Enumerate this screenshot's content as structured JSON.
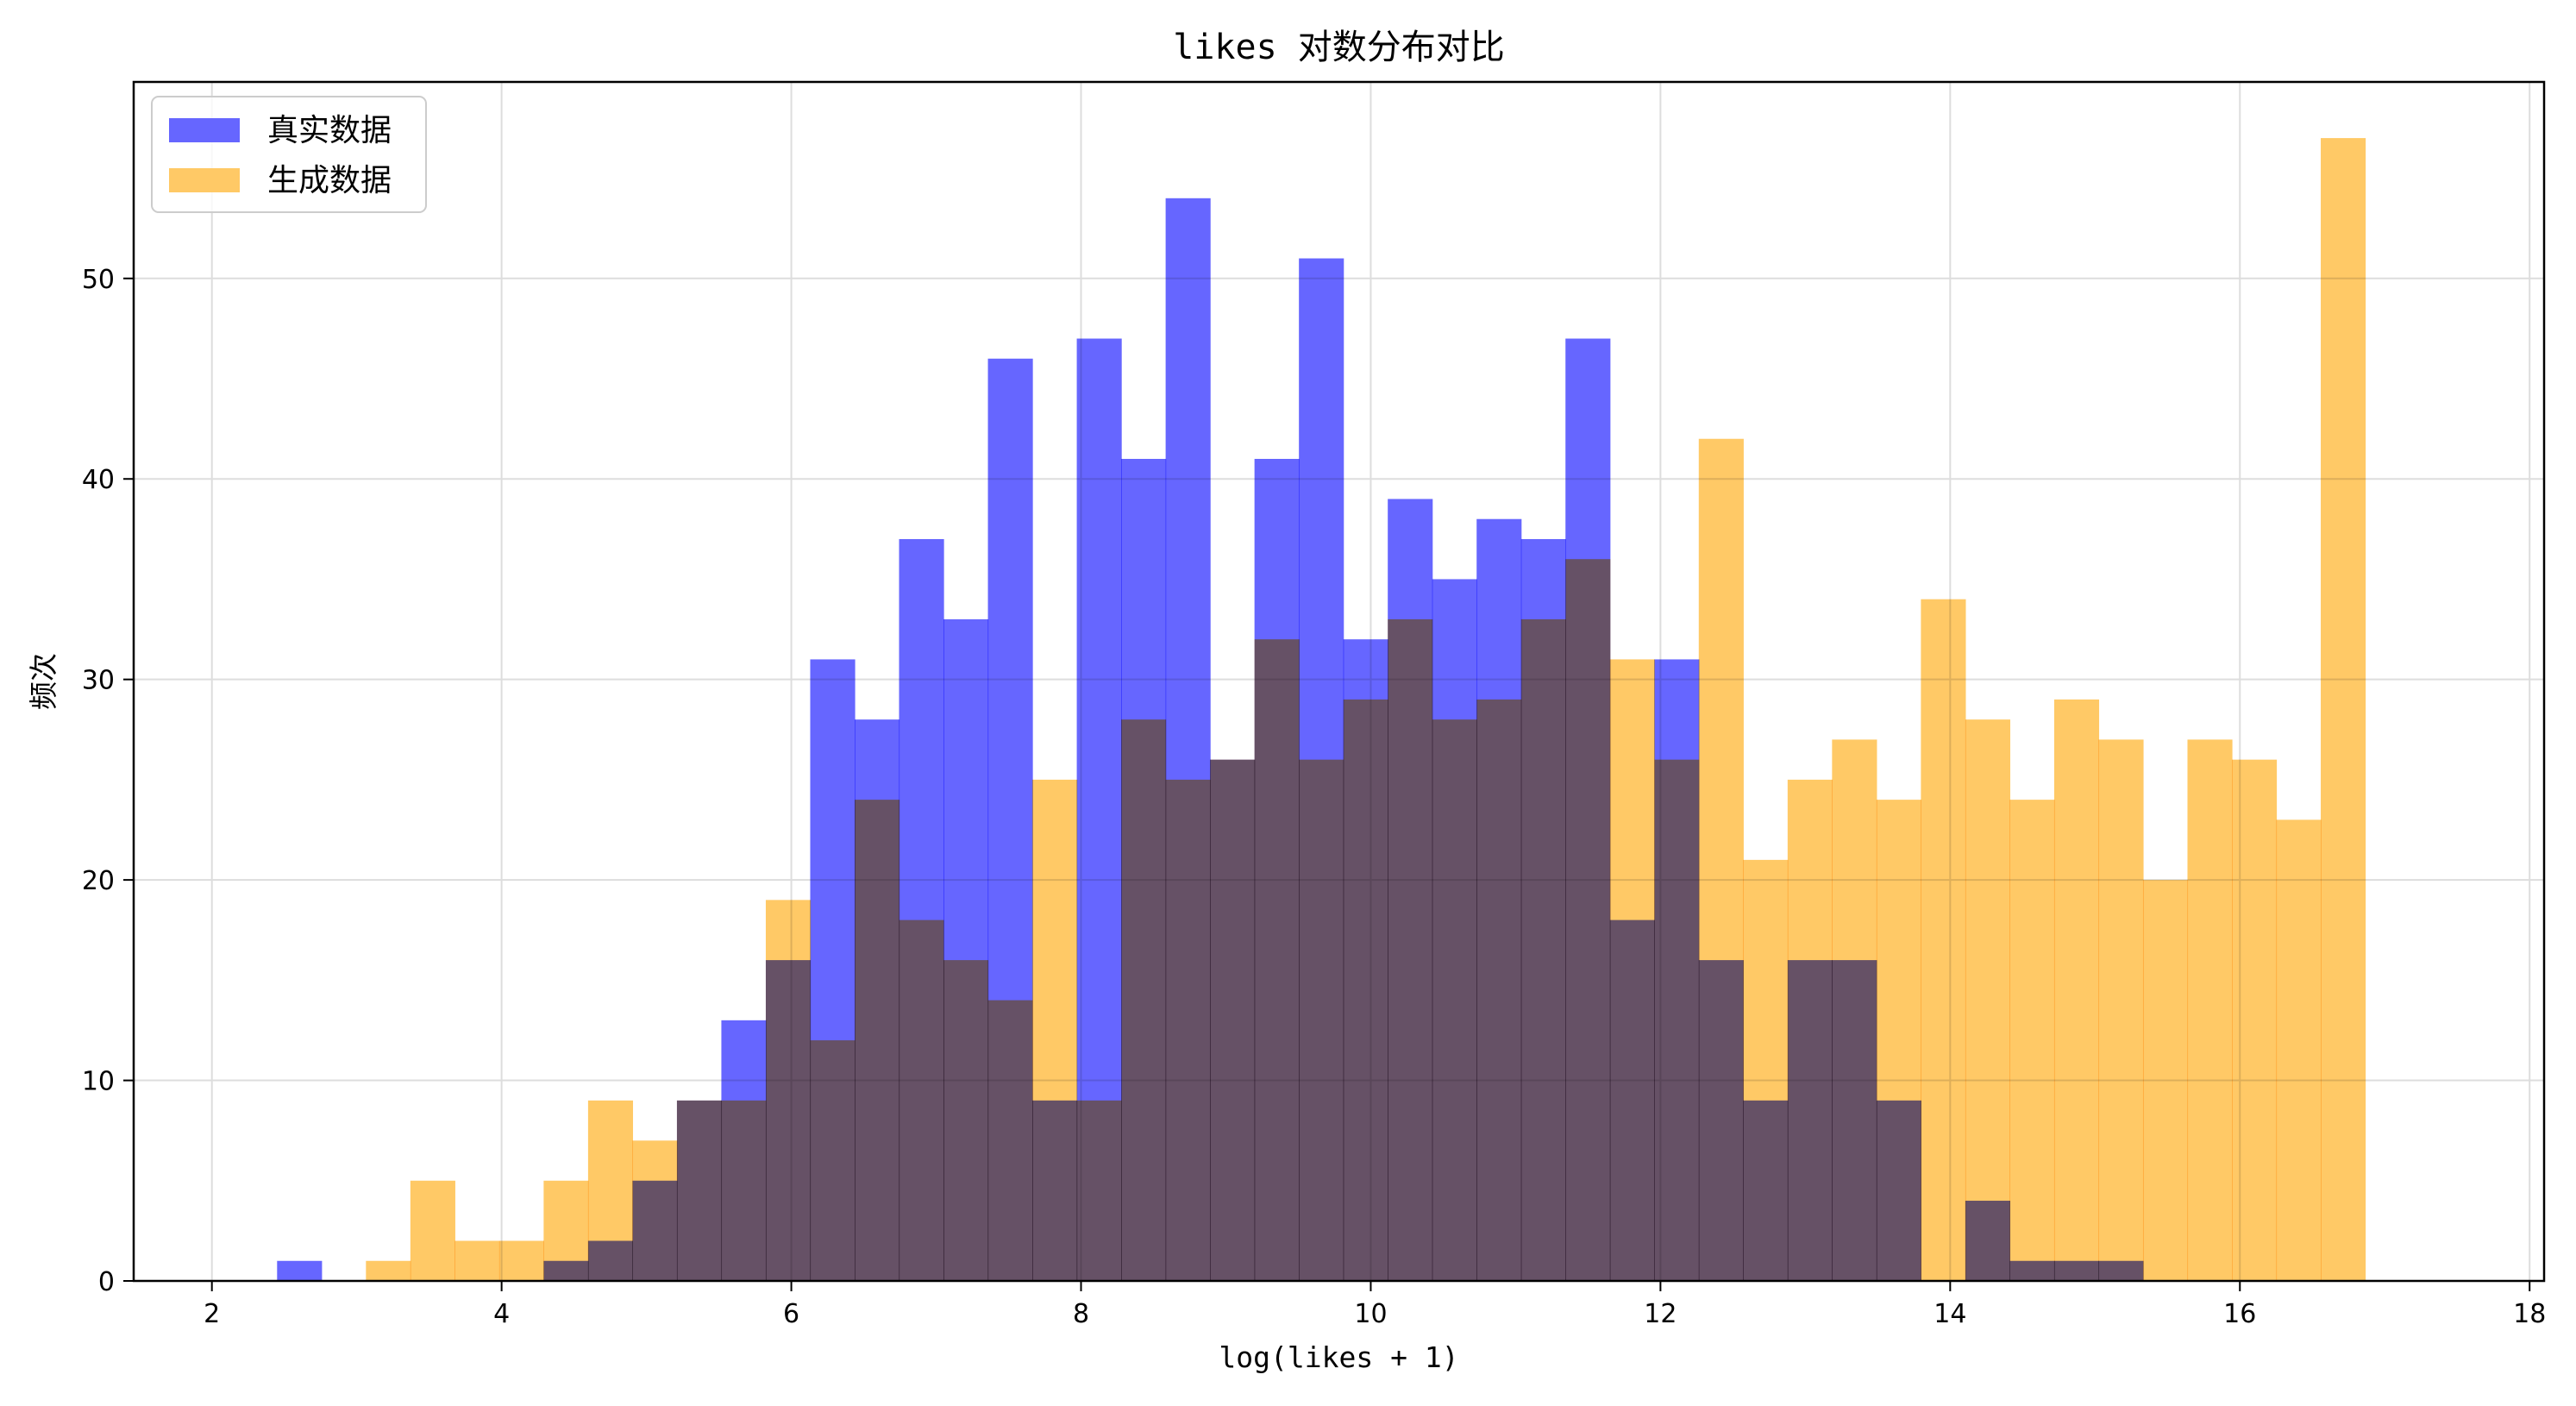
{
  "chart_data": {
    "type": "bar",
    "title": "likes 对数分布对比",
    "xlabel": "log(likes + 1)",
    "ylabel": "频次",
    "xlim": [
      1.46,
      18.1
    ],
    "ylim": [
      0,
      59.8
    ],
    "xticks": [
      2,
      4,
      6,
      8,
      10,
      12,
      14,
      16,
      18
    ],
    "yticks": [
      0,
      10,
      20,
      30,
      40,
      50
    ],
    "grid": true,
    "legend_position": "top-left",
    "bin_start": 2.45,
    "bin_width": 0.3067,
    "series": [
      {
        "name": "真实数据",
        "color": "#6666ff",
        "values": [
          1,
          0,
          0,
          0,
          0,
          0,
          1,
          2,
          5,
          9,
          13,
          16,
          31,
          28,
          37,
          33,
          46,
          9,
          47,
          41,
          54,
          26,
          41,
          51,
          32,
          39,
          35,
          38,
          37,
          47,
          18,
          31,
          16,
          9,
          16,
          16,
          9,
          0,
          4,
          1,
          1,
          1,
          0
        ]
      },
      {
        "name": "生成数据",
        "color": "#ffc966",
        "values": [
          0,
          0,
          1,
          5,
          2,
          2,
          5,
          9,
          7,
          9,
          9,
          19,
          12,
          24,
          18,
          16,
          14,
          25,
          9,
          28,
          25,
          26,
          32,
          26,
          29,
          33,
          28,
          29,
          33,
          36,
          31,
          26,
          42,
          21,
          25,
          27,
          24,
          34,
          28,
          24,
          29,
          27,
          20,
          27,
          26,
          23,
          57
        ]
      }
    ]
  }
}
